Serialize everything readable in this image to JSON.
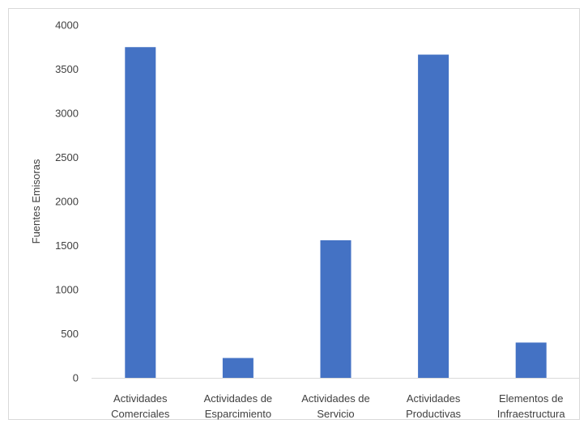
{
  "chart_data": {
    "type": "bar",
    "title": "",
    "xlabel": "",
    "ylabel": "Fuentes Emisoras",
    "ylim": [
      0,
      4000
    ],
    "y_ticks": [
      0,
      500,
      1000,
      1500,
      2000,
      2500,
      3000,
      3500,
      4000
    ],
    "grid": false,
    "legend": "none",
    "categories": [
      [
        "Actividades",
        "Comerciales"
      ],
      [
        "Actividades de",
        "Esparcimiento"
      ],
      [
        "Actividades de",
        "Servicio"
      ],
      [
        "Actividades",
        "Productivas"
      ],
      [
        "Elementos de",
        "Infraestructura"
      ]
    ],
    "values": [
      3750,
      225,
      1560,
      3665,
      400
    ],
    "colors": {
      "bar": "#4472c4",
      "axis": "#d9d9d9"
    }
  }
}
